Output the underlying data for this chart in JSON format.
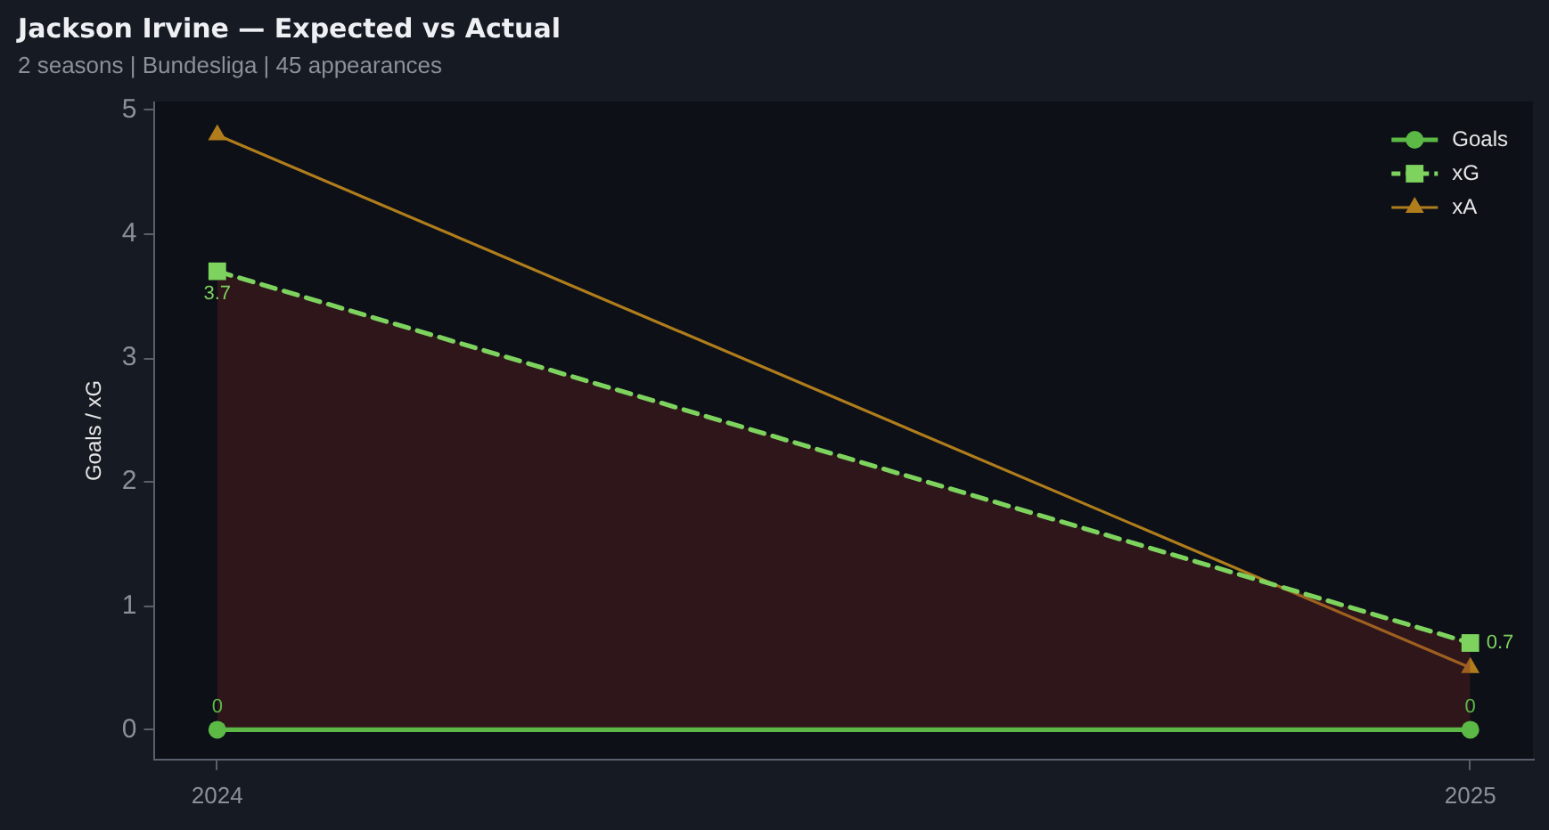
{
  "chart_data": {
    "type": "line",
    "title": "Jackson Irvine — Expected vs Actual",
    "subtitle": "2 seasons | Bundesliga | 45 appearances",
    "ylabel": "Goals / xG",
    "x": [
      2024,
      2025
    ],
    "xlim": [
      2023.95,
      2025.05
    ],
    "xticks": [
      2024,
      2025
    ],
    "ylim": [
      -0.24,
      5.07
    ],
    "yticks": [
      0,
      1,
      2,
      3,
      4,
      5
    ],
    "series": [
      {
        "name": "Goals",
        "color": "#5cb946",
        "values": [
          0,
          0
        ],
        "marker": "circle",
        "line_style": "solid",
        "value_labels": [
          "0",
          "0"
        ]
      },
      {
        "name": "xG",
        "type": "area",
        "color": "#7dd35e",
        "values": [
          3.7,
          0.7
        ],
        "marker": "square",
        "line_style": "dashed",
        "value_labels": [
          "3.7",
          "0.7"
        ]
      },
      {
        "name": "xA",
        "color": "#b07d1c",
        "values": [
          4.8,
          0.5
        ],
        "marker": "triangle",
        "line_style": "solid"
      }
    ],
    "legend": "top right"
  }
}
